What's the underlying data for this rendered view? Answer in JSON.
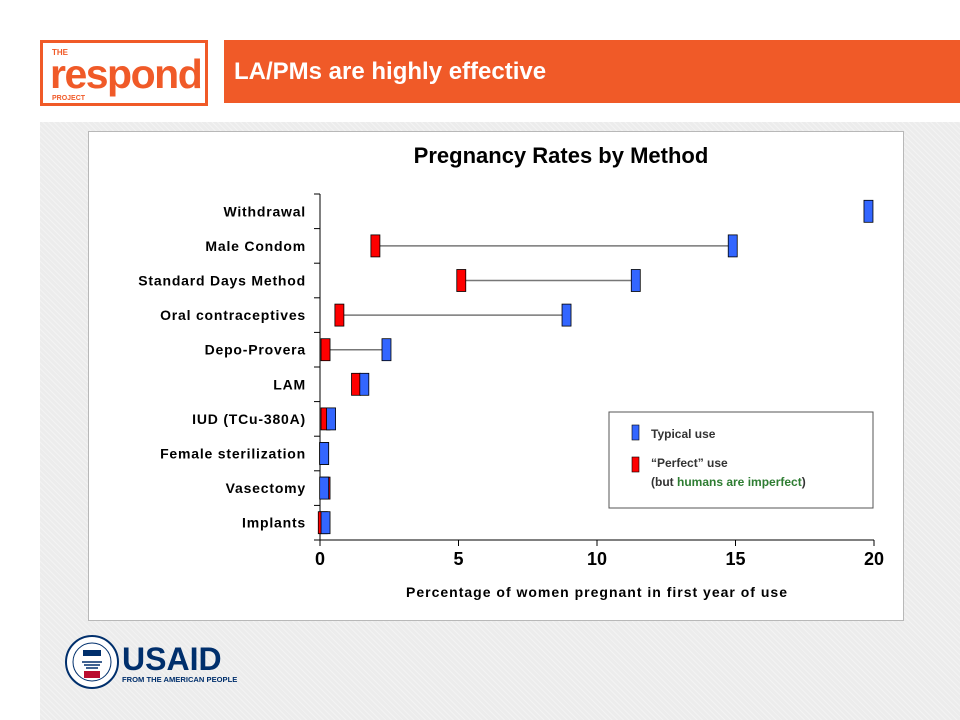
{
  "header": {
    "logo": {
      "the": "THE",
      "word": "respond",
      "project": "PROJECT"
    },
    "title": "LA/PMs are highly effective"
  },
  "footer": {
    "usaid_wordmark": "USAID",
    "usaid_tagline": "FROM THE AMERICAN PEOPLE"
  },
  "colors": {
    "brand_orange": "#f05a28",
    "typical_fill": "#3366ff",
    "perfect_fill": "#ff0000",
    "usaid_blue": "#002f6c",
    "usaid_red": "#ba0c2f",
    "highlight_green": "#2e7d32"
  },
  "chart_data": {
    "type": "range",
    "title": "Pregnancy Rates by Method",
    "xlabel": "Percentage of women pregnant in first year of use",
    "ylabel": "",
    "xlim": [
      0,
      20
    ],
    "xticks": [
      "0",
      "5",
      "10",
      "15",
      "20"
    ],
    "grid": false,
    "categories": [
      "Withdrawal",
      "Male Condom",
      "Standard Days Method",
      "Oral contraceptives",
      "Depo-Provera",
      "LAM",
      "IUD (TCu-380A)",
      "Female sterilization",
      "Vasectomy",
      "Implants"
    ],
    "series": [
      {
        "name": "Typical use",
        "values": [
          19.8,
          14.9,
          11.4,
          8.9,
          2.4,
          1.6,
          0.4,
          0.15,
          0.15,
          0.2
        ]
      },
      {
        "name": "“Perfect” use",
        "values": [
          null,
          2.0,
          5.1,
          0.7,
          0.2,
          1.3,
          0.2,
          0.15,
          0.2,
          0.1
        ]
      }
    ],
    "legend": {
      "position": "lower-right",
      "typical": "Typical use",
      "perfect": "“Perfect” use",
      "note_prefix": "(but ",
      "note_highlight": "humans are imperfect",
      "note_suffix": ")"
    }
  }
}
